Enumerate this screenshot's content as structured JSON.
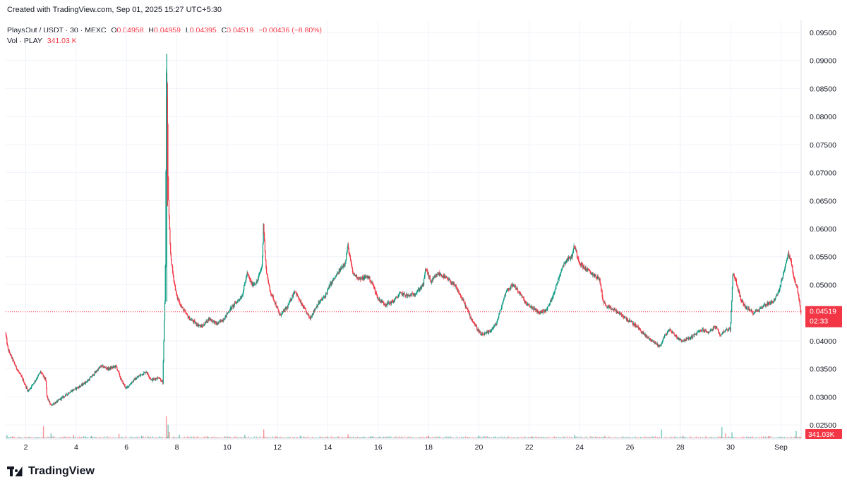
{
  "header": {
    "credit": "Created with TradingView.com, Sep 01, 2025 15:27 UTC+5:30"
  },
  "legend": {
    "symbol": "PlaysOut / USDT · 30 · MEXC",
    "o_label": "O",
    "o_value": "0.04958",
    "h_label": "H",
    "h_value": "0.04959",
    "l_label": "L",
    "l_value": "0.04395",
    "c_label": "C",
    "c_value": "0.04519",
    "change": "−0.00436 (−8.80%)",
    "vol_label": "Vol · PLAY",
    "vol_value": "341.03 K"
  },
  "brand": {
    "name": "TradingView"
  },
  "colors": {
    "up": "#089981",
    "down": "#f23645",
    "grid": "#f0f3fa",
    "text": "#131722",
    "axis_text": "#131722"
  },
  "chart_data": {
    "type": "candlestick",
    "y_ticks": [
      "0.09500",
      "0.09000",
      "0.08500",
      "0.08000",
      "0.07500",
      "0.07000",
      "0.06500",
      "0.06000",
      "0.05500",
      "0.05000",
      "0.04519",
      "0.04000",
      "0.03500",
      "0.03000",
      "0.02500"
    ],
    "y_tick_values": [
      0.095,
      0.09,
      0.085,
      0.08,
      0.075,
      0.07,
      0.065,
      0.06,
      0.055,
      0.05,
      0.04519,
      0.04,
      0.035,
      0.03,
      0.025
    ],
    "ylim": [
      0.0225,
      0.097
    ],
    "x_ticks": [
      "2",
      "4",
      "6",
      "8",
      "10",
      "12",
      "14",
      "16",
      "18",
      "20",
      "22",
      "24",
      "26",
      "28",
      "30",
      "Sep"
    ],
    "x_tick_days": [
      2,
      4,
      6,
      8,
      10,
      12,
      14,
      16,
      18,
      20,
      22,
      24,
      26,
      28,
      30,
      32
    ],
    "xlim_days": [
      1.2,
      32.8
    ],
    "last_price": "0.04519",
    "last_price_value": 0.04519,
    "countdown": "02:33",
    "last_volume": "341.03K",
    "price_path": [
      [
        1.2,
        0.0415
      ],
      [
        1.3,
        0.0385
      ],
      [
        1.6,
        0.0355
      ],
      [
        1.9,
        0.033
      ],
      [
        2.1,
        0.031
      ],
      [
        2.4,
        0.033
      ],
      [
        2.6,
        0.0345
      ],
      [
        2.8,
        0.033
      ],
      [
        2.85,
        0.03
      ],
      [
        3.0,
        0.0285
      ],
      [
        3.2,
        0.029
      ],
      [
        3.5,
        0.03
      ],
      [
        3.8,
        0.031
      ],
      [
        4.2,
        0.032
      ],
      [
        4.5,
        0.033
      ],
      [
        4.8,
        0.0345
      ],
      [
        5.0,
        0.0355
      ],
      [
        5.3,
        0.035
      ],
      [
        5.6,
        0.0355
      ],
      [
        5.8,
        0.033
      ],
      [
        6.0,
        0.0315
      ],
      [
        6.3,
        0.033
      ],
      [
        6.6,
        0.034
      ],
      [
        6.8,
        0.0345
      ],
      [
        7.0,
        0.033
      ],
      [
        7.3,
        0.0335
      ],
      [
        7.45,
        0.0325
      ],
      [
        7.55,
        0.05
      ],
      [
        7.6,
        0.091
      ],
      [
        7.63,
        0.082
      ],
      [
        7.66,
        0.068
      ],
      [
        7.7,
        0.062
      ],
      [
        7.75,
        0.056
      ],
      [
        7.85,
        0.052
      ],
      [
        8.0,
        0.048
      ],
      [
        8.2,
        0.046
      ],
      [
        8.5,
        0.044
      ],
      [
        8.8,
        0.043
      ],
      [
        9.0,
        0.0425
      ],
      [
        9.3,
        0.044
      ],
      [
        9.6,
        0.043
      ],
      [
        9.9,
        0.044
      ],
      [
        10.1,
        0.0455
      ],
      [
        10.4,
        0.047
      ],
      [
        10.6,
        0.048
      ],
      [
        10.8,
        0.052
      ],
      [
        11.0,
        0.05
      ],
      [
        11.2,
        0.0505
      ],
      [
        11.4,
        0.0535
      ],
      [
        11.45,
        0.061
      ],
      [
        11.55,
        0.053
      ],
      [
        11.7,
        0.049
      ],
      [
        11.9,
        0.047
      ],
      [
        12.1,
        0.0445
      ],
      [
        12.4,
        0.046
      ],
      [
        12.7,
        0.049
      ],
      [
        12.9,
        0.047
      ],
      [
        13.1,
        0.0455
      ],
      [
        13.3,
        0.044
      ],
      [
        13.6,
        0.0465
      ],
      [
        13.9,
        0.048
      ],
      [
        14.1,
        0.05
      ],
      [
        14.4,
        0.052
      ],
      [
        14.7,
        0.054
      ],
      [
        14.8,
        0.057
      ],
      [
        15.0,
        0.052
      ],
      [
        15.3,
        0.051
      ],
      [
        15.6,
        0.0515
      ],
      [
        15.8,
        0.05
      ],
      [
        16.0,
        0.0475
      ],
      [
        16.3,
        0.0465
      ],
      [
        16.6,
        0.047
      ],
      [
        16.9,
        0.0485
      ],
      [
        17.2,
        0.048
      ],
      [
        17.5,
        0.0485
      ],
      [
        17.8,
        0.05
      ],
      [
        17.9,
        0.053
      ],
      [
        18.1,
        0.0505
      ],
      [
        18.4,
        0.052
      ],
      [
        18.6,
        0.0515
      ],
      [
        18.9,
        0.0505
      ],
      [
        19.1,
        0.0495
      ],
      [
        19.4,
        0.047
      ],
      [
        19.7,
        0.044
      ],
      [
        19.9,
        0.0425
      ],
      [
        20.1,
        0.041
      ],
      [
        20.4,
        0.0415
      ],
      [
        20.7,
        0.043
      ],
      [
        20.9,
        0.046
      ],
      [
        21.1,
        0.049
      ],
      [
        21.4,
        0.05
      ],
      [
        21.7,
        0.048
      ],
      [
        21.9,
        0.0465
      ],
      [
        22.1,
        0.046
      ],
      [
        22.4,
        0.045
      ],
      [
        22.7,
        0.0455
      ],
      [
        22.9,
        0.0475
      ],
      [
        23.1,
        0.05
      ],
      [
        23.3,
        0.053
      ],
      [
        23.5,
        0.0545
      ],
      [
        23.7,
        0.055
      ],
      [
        23.8,
        0.057
      ],
      [
        24.0,
        0.054
      ],
      [
        24.2,
        0.053
      ],
      [
        24.5,
        0.052
      ],
      [
        24.8,
        0.051
      ],
      [
        24.95,
        0.047
      ],
      [
        25.1,
        0.046
      ],
      [
        25.4,
        0.0455
      ],
      [
        25.7,
        0.0445
      ],
      [
        26.0,
        0.0435
      ],
      [
        26.3,
        0.0425
      ],
      [
        26.6,
        0.041
      ],
      [
        26.9,
        0.04
      ],
      [
        27.2,
        0.039
      ],
      [
        27.4,
        0.041
      ],
      [
        27.6,
        0.042
      ],
      [
        27.9,
        0.0405
      ],
      [
        28.1,
        0.04
      ],
      [
        28.4,
        0.0405
      ],
      [
        28.7,
        0.0415
      ],
      [
        28.9,
        0.042
      ],
      [
        29.1,
        0.0415
      ],
      [
        29.4,
        0.0425
      ],
      [
        29.6,
        0.041
      ],
      [
        29.8,
        0.042
      ],
      [
        30.0,
        0.042
      ],
      [
        30.1,
        0.052
      ],
      [
        30.2,
        0.051
      ],
      [
        30.4,
        0.0475
      ],
      [
        30.6,
        0.046
      ],
      [
        30.9,
        0.045
      ],
      [
        31.1,
        0.0455
      ],
      [
        31.4,
        0.0465
      ],
      [
        31.7,
        0.047
      ],
      [
        31.9,
        0.0485
      ],
      [
        32.1,
        0.052
      ],
      [
        32.3,
        0.0555
      ],
      [
        32.4,
        0.0545
      ],
      [
        32.5,
        0.0515
      ],
      [
        32.65,
        0.0495
      ],
      [
        32.8,
        0.04519
      ]
    ],
    "volume_ylim": [
      0,
      60
    ],
    "volume_spikes": [
      [
        1.25,
        8
      ],
      [
        2.7,
        30
      ],
      [
        3.0,
        12
      ],
      [
        3.9,
        8
      ],
      [
        4.6,
        6
      ],
      [
        5.7,
        11
      ],
      [
        6.6,
        6
      ],
      [
        7.58,
        55
      ],
      [
        7.65,
        34
      ],
      [
        7.7,
        16
      ],
      [
        8.1,
        9
      ],
      [
        9.2,
        5
      ],
      [
        10.7,
        9
      ],
      [
        11.45,
        22
      ],
      [
        12.9,
        6
      ],
      [
        14.8,
        10
      ],
      [
        15.7,
        5
      ],
      [
        18.0,
        6
      ],
      [
        20.0,
        6
      ],
      [
        22.1,
        5
      ],
      [
        23.8,
        9
      ],
      [
        25.0,
        6
      ],
      [
        27.25,
        22
      ],
      [
        28.1,
        6
      ],
      [
        29.65,
        28
      ],
      [
        29.8,
        12
      ],
      [
        30.05,
        15
      ],
      [
        31.5,
        5
      ],
      [
        32.6,
        18
      ],
      [
        32.75,
        4
      ]
    ]
  }
}
